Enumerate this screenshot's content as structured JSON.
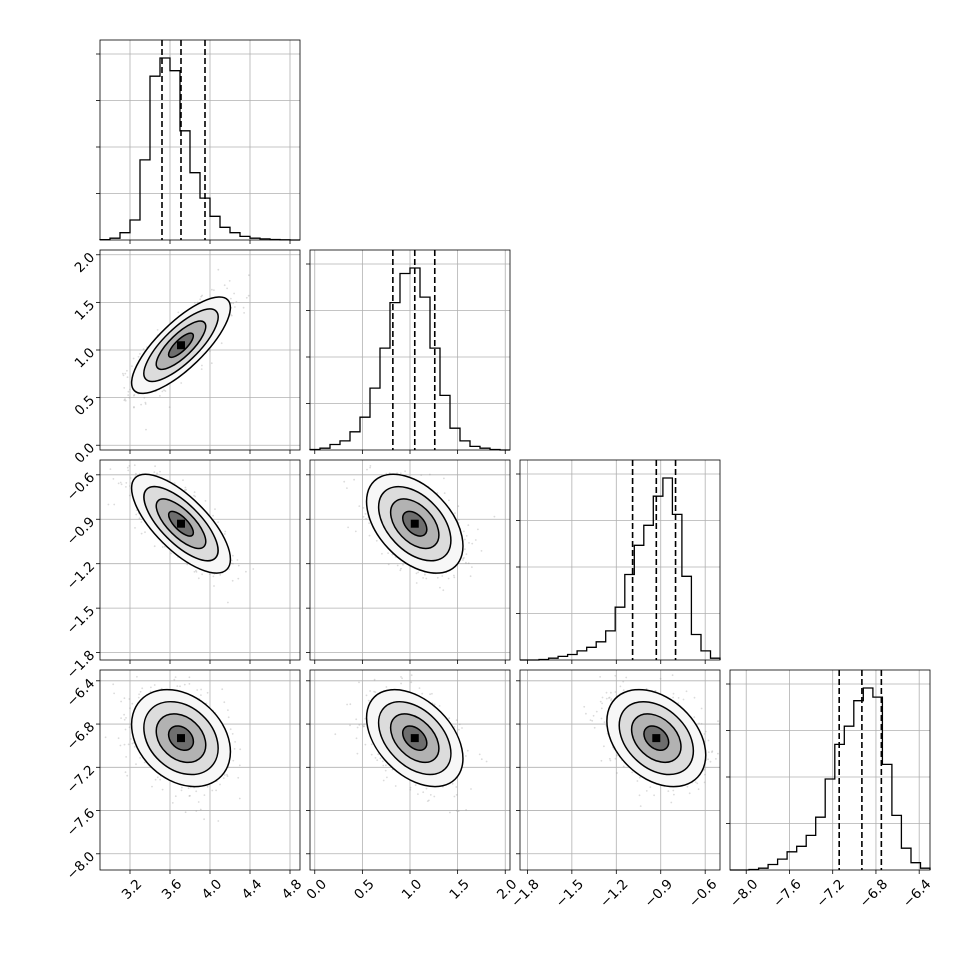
{
  "chart_data": {
    "type": "corner",
    "grid": true,
    "parameters": [
      {
        "range": [
          2.9,
          4.9
        ],
        "ticks": [
          "3.2",
          "3.6",
          "4.0",
          "4.4",
          "4.8"
        ],
        "tick_values": [
          3.2,
          3.6,
          4.0,
          4.4,
          4.8
        ],
        "median": 3.71,
        "quantiles": [
          3.52,
          3.95
        ],
        "hist": [
          0.002,
          0.01,
          0.04,
          0.11,
          0.44,
          0.9,
          1.0,
          0.93,
          0.6,
          0.37,
          0.23,
          0.13,
          0.07,
          0.04,
          0.02,
          0.01,
          0.006,
          0.003,
          0.001,
          0.0
        ]
      },
      {
        "range": [
          -0.05,
          2.05
        ],
        "ticks": [
          "0.0",
          "0.5",
          "1.0",
          "1.5",
          "2.0"
        ],
        "tick_values": [
          0.0,
          0.5,
          1.0,
          1.5,
          2.0
        ],
        "median": 1.05,
        "quantiles": [
          0.82,
          1.26
        ],
        "hist": [
          0.003,
          0.01,
          0.03,
          0.05,
          0.1,
          0.18,
          0.34,
          0.56,
          0.81,
          0.97,
          1.0,
          0.84,
          0.56,
          0.3,
          0.12,
          0.05,
          0.02,
          0.01,
          0.003,
          0.0
        ]
      },
      {
        "range": [
          -1.85,
          -0.5
        ],
        "ticks": [
          "-1.8",
          "-1.5",
          "-1.2",
          "-0.9",
          "-0.6"
        ],
        "tick_values": [
          -1.8,
          -1.5,
          -1.2,
          -0.9,
          -0.6
        ],
        "median": -0.93,
        "quantiles": [
          -1.09,
          -0.8
        ],
        "hist": [
          0.0,
          0.0,
          0.003,
          0.01,
          0.02,
          0.03,
          0.05,
          0.07,
          0.1,
          0.16,
          0.29,
          0.47,
          0.63,
          0.74,
          0.9,
          1.0,
          0.8,
          0.46,
          0.14,
          0.05,
          0.01
        ]
      },
      {
        "range": [
          -8.15,
          -6.3
        ],
        "ticks": [
          "-8.0",
          "-7.6",
          "-7.2",
          "-6.8",
          "-6.4"
        ],
        "tick_values": [
          -8.0,
          -7.6,
          -7.2,
          -6.8,
          -6.4
        ],
        "median": -6.93,
        "quantiles": [
          -7.14,
          -6.75
        ],
        "hist": [
          0.0,
          0.0,
          0.003,
          0.01,
          0.03,
          0.06,
          0.1,
          0.13,
          0.19,
          0.29,
          0.5,
          0.69,
          0.79,
          0.93,
          1.0,
          0.95,
          0.58,
          0.3,
          0.12,
          0.04,
          0.01
        ]
      }
    ],
    "correlations": [
      {
        "row": 1,
        "col": 0,
        "rho": 0.78
      },
      {
        "row": 2,
        "col": 0,
        "rho": -0.72
      },
      {
        "row": 2,
        "col": 1,
        "rho": -0.45
      },
      {
        "row": 3,
        "col": 0,
        "rho": -0.28
      },
      {
        "row": 3,
        "col": 1,
        "rho": -0.42
      },
      {
        "row": 3,
        "col": 2,
        "rho": -0.35
      }
    ],
    "contour_levels_sigma": [
      0.5,
      1.0,
      1.5,
      2.0
    ]
  }
}
